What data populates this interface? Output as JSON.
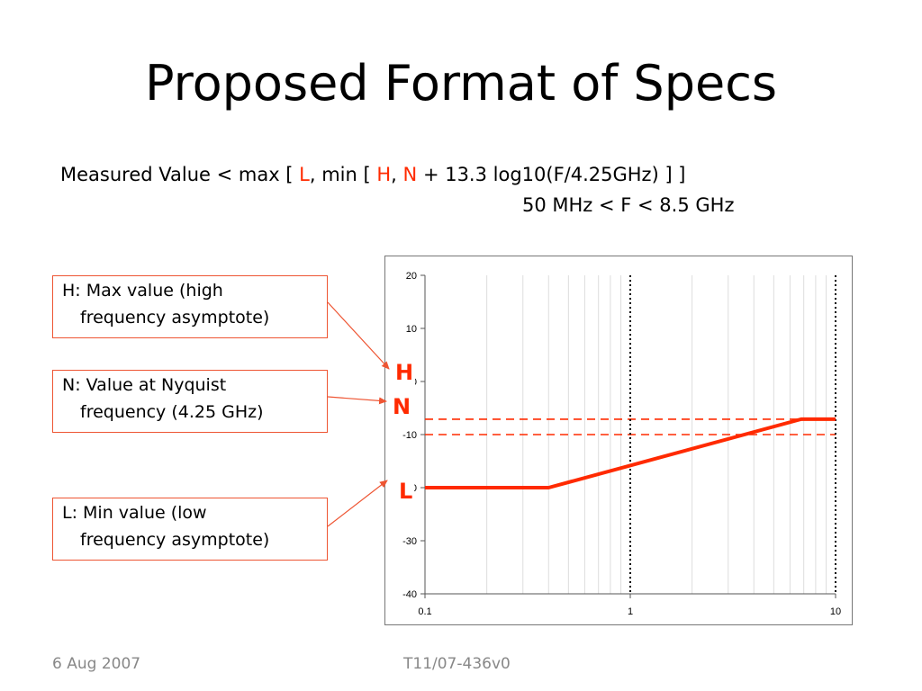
{
  "slide": {
    "title": "Proposed Format of Specs",
    "formula": {
      "prefix": "Measured Value < max [ ",
      "L": "L",
      "mid1": ", min [ ",
      "H": "H",
      "comma": ",",
      "N": "N",
      "suffix": " + 13.3 log10(F/4.25GHz) ] ]"
    },
    "range": "50 MHz < F < 8.5 GHz",
    "callouts": {
      "H": {
        "line1": "H:  Max value (high",
        "line2": "frequency asymptote)"
      },
      "N": {
        "line1": "N:  Value at Nyquist",
        "line2": "frequency (4.25 GHz)"
      },
      "L": {
        "line1": "L:  Min value (low",
        "line2": "frequency asymptote)"
      }
    },
    "markers": {
      "H": "H",
      "N": "N",
      "L": "L"
    },
    "footer": {
      "date": "6 Aug 2007",
      "doc_id": "T11/07-436v0"
    },
    "colors": {
      "accent": "#ff2a00",
      "callout_border": "#ee5533",
      "footer": "#888888"
    }
  },
  "chart_data": {
    "type": "line",
    "x_scale": "log",
    "xlim": [
      0.1,
      10
    ],
    "ylim": [
      -40,
      20
    ],
    "x_ticks": [
      "0.1",
      "1",
      "10"
    ],
    "y_ticks": [
      "20",
      "10",
      "0",
      "-10",
      "-20",
      "-30",
      "-40"
    ],
    "grid": "vertical minor lines",
    "series": [
      {
        "x": [
          0.1,
          0.4,
          6.8,
          10
        ],
        "y": [
          -20,
          -20,
          -7.1,
          -7.1
        ]
      }
    ],
    "reference_lines": [
      {
        "orientation": "horizontal",
        "y": -7.1,
        "style": "dashed",
        "label": "H"
      },
      {
        "orientation": "horizontal",
        "y": -10,
        "style": "dashed",
        "label": "N"
      },
      {
        "orientation": "vertical",
        "x": 1,
        "style": "dotted"
      },
      {
        "orientation": "vertical",
        "x": 10,
        "style": "dotted"
      }
    ]
  }
}
